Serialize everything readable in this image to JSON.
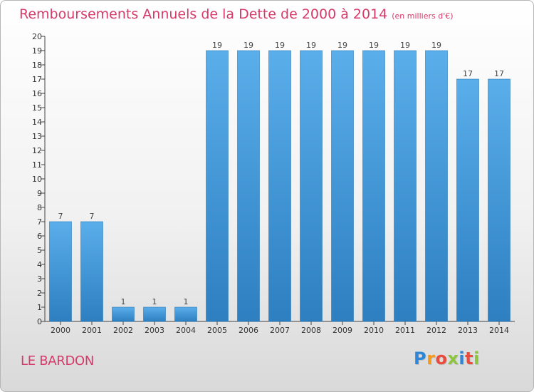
{
  "header": {
    "title": "Remboursements Annuels de la Dette de 2000 à 2014",
    "subtitle": "(en milliers d'€)"
  },
  "footer": {
    "commune": "LE BARDON",
    "logo_text": "Proxiti"
  },
  "colors": {
    "title": "#d63a6a",
    "bar_top": "#5aaeea",
    "bar_bottom": "#2d7fc0",
    "logo_letters": [
      "#2e86d9",
      "#f39a1e",
      "#e94b3c",
      "#8cc43f",
      "#2e86d9",
      "#e94b3c",
      "#8cc43f"
    ]
  },
  "chart_data": {
    "type": "bar",
    "categories": [
      "2000",
      "2001",
      "2002",
      "2003",
      "2004",
      "2005",
      "2006",
      "2007",
      "2008",
      "2009",
      "2010",
      "2011",
      "2012",
      "2013",
      "2014"
    ],
    "values": [
      7,
      7,
      1,
      1,
      1,
      19,
      19,
      19,
      19,
      19,
      19,
      19,
      19,
      17,
      17
    ],
    "data_labels": [
      "7",
      "7",
      "1",
      "1",
      "1",
      "19",
      "19",
      "19",
      "19",
      "19",
      "19",
      "19",
      "19",
      "17",
      "17"
    ],
    "y_ticks": [
      0,
      1,
      2,
      3,
      4,
      5,
      6,
      7,
      8,
      9,
      10,
      11,
      12,
      13,
      14,
      15,
      16,
      17,
      18,
      19,
      20
    ],
    "ylim": [
      0,
      20
    ],
    "grid": false,
    "legend": "none"
  }
}
